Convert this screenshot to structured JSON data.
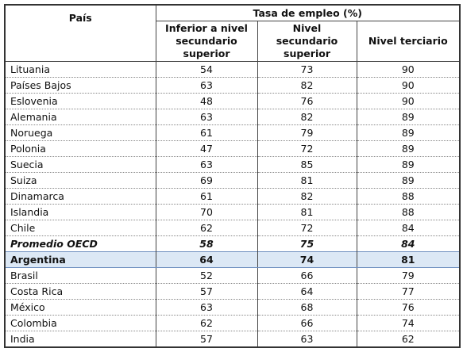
{
  "header": {
    "country": "País",
    "group": "Tasa de empleo (%)",
    "columns": [
      [
        "Inferior a nivel",
        "secundario",
        "superior"
      ],
      [
        "Nivel",
        "secundario",
        "superior"
      ],
      [
        "Nivel terciario"
      ]
    ]
  },
  "table": {
    "rows": [
      [
        "Lituania",
        54,
        73,
        90
      ],
      [
        "Países Bajos",
        63,
        82,
        90
      ],
      [
        "Eslovenia",
        48,
        76,
        90
      ],
      [
        "Alemania",
        63,
        82,
        89
      ],
      [
        "Noruega",
        61,
        79,
        89
      ],
      [
        "Polonia",
        47,
        72,
        89
      ],
      [
        "Suecia",
        63,
        85,
        89
      ],
      [
        "Suiza",
        69,
        81,
        89
      ],
      [
        "Dinamarca",
        61,
        82,
        88
      ],
      [
        "Islandia",
        70,
        81,
        88
      ],
      [
        "Chile",
        62,
        72,
        84
      ],
      [
        "Promedio OECD",
        58,
        75,
        84
      ],
      [
        "Argentina",
        64,
        74,
        81
      ],
      [
        "Brasil",
        52,
        66,
        79
      ],
      [
        "Costa Rica",
        57,
        64,
        77
      ],
      [
        "México",
        63,
        68,
        76
      ],
      [
        "Colombia",
        62,
        66,
        74
      ],
      [
        "India",
        57,
        63,
        62
      ]
    ]
  }
}
